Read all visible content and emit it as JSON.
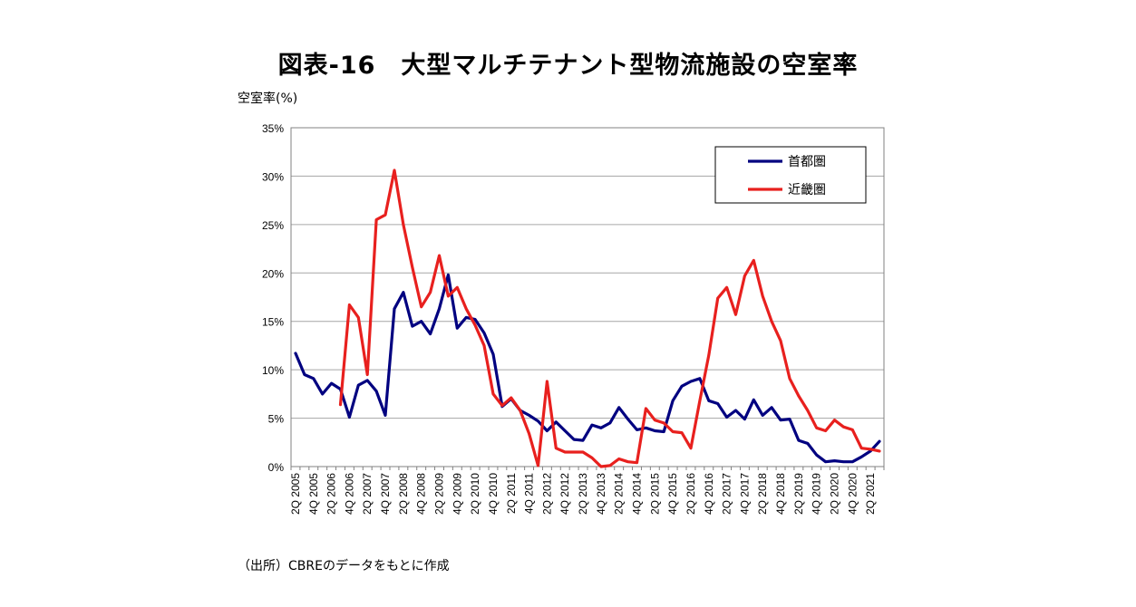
{
  "chart_data": {
    "type": "line",
    "title": "図表-16　大型マルチテナント型物流施設の空室率",
    "ylabel": "空室率(%)",
    "source": "（出所）CBREのデータをもとに作成",
    "ylim": [
      0,
      35
    ],
    "yticks": [
      "0%",
      "5%",
      "10%",
      "15%",
      "20%",
      "25%",
      "30%",
      "35%"
    ],
    "grid": true,
    "legend_position": "top-right",
    "x": [
      "2Q 2005",
      "3Q 2005",
      "4Q 2005",
      "1Q 2006",
      "2Q 2006",
      "3Q 2006",
      "4Q 2006",
      "1Q 2007",
      "2Q 2007",
      "3Q 2007",
      "4Q 2007",
      "1Q 2008",
      "2Q 2008",
      "3Q 2008",
      "4Q 2008",
      "1Q 2009",
      "2Q 2009",
      "3Q 2009",
      "4Q 2009",
      "1Q 2010",
      "2Q 2010",
      "3Q 2010",
      "4Q 2010",
      "1Q 2011",
      "2Q 2011",
      "3Q 2011",
      "4Q 2011",
      "1Q 2012",
      "2Q 2012",
      "3Q 2012",
      "4Q 2012",
      "1Q 2013",
      "2Q 2013",
      "3Q 2013",
      "4Q 2013",
      "1Q 2014",
      "2Q 2014",
      "3Q 2014",
      "4Q 2014",
      "1Q 2015",
      "2Q 2015",
      "3Q 2015",
      "4Q 2015",
      "1Q 2016",
      "2Q 2016",
      "3Q 2016",
      "4Q 2016",
      "1Q 2017",
      "2Q 2017",
      "3Q 2017",
      "4Q 2017",
      "1Q 2018",
      "2Q 2018",
      "3Q 2018",
      "4Q 2018",
      "1Q 2019",
      "2Q 2019",
      "3Q 2019",
      "4Q 2019",
      "1Q 2020",
      "2Q 2020",
      "3Q 2020",
      "4Q 2020",
      "1Q 2021",
      "2Q 2021",
      "3Q 2021"
    ],
    "xtick_labels": [
      "2Q 2005",
      "4Q 2005",
      "2Q 2006",
      "4Q 2006",
      "2Q 2007",
      "4Q 2007",
      "2Q 2008",
      "4Q 2008",
      "2Q 2009",
      "4Q 2009",
      "2Q 2010",
      "4Q 2010",
      "2Q 2011",
      "4Q 2011",
      "2Q 2012",
      "4Q 2012",
      "2Q 2013",
      "4Q 2013",
      "2Q 2014",
      "4Q 2014",
      "2Q 2015",
      "4Q 2015",
      "2Q 2016",
      "4Q 2016",
      "2Q 2017",
      "4Q 2017",
      "2Q 2018",
      "4Q 2018",
      "2Q 2019",
      "4Q 2019",
      "2Q 2020",
      "4Q 2020",
      "2Q 2021"
    ],
    "series": [
      {
        "name": "首都圏",
        "color": "#000080",
        "values": [
          11.7,
          9.5,
          9.1,
          7.5,
          8.6,
          8.0,
          5.1,
          8.4,
          8.9,
          7.8,
          5.3,
          16.3,
          18.0,
          14.5,
          15.0,
          13.7,
          16.3,
          19.8,
          14.3,
          15.4,
          15.2,
          13.8,
          11.6,
          6.2,
          7.0,
          5.8,
          5.3,
          4.7,
          3.7,
          4.6,
          3.7,
          2.8,
          2.7,
          4.3,
          4.0,
          4.5,
          6.1,
          4.9,
          3.8,
          4.0,
          3.7,
          3.6,
          6.8,
          8.3,
          8.8,
          9.1,
          6.8,
          6.5,
          5.1,
          5.8,
          4.9,
          6.9,
          5.3,
          6.1,
          4.8,
          4.9,
          2.7,
          2.4,
          1.2,
          0.5,
          0.6,
          0.5,
          0.5,
          1.0,
          1.6,
          2.6
        ]
      },
      {
        "name": "近畿圏",
        "color": "#e8201e",
        "values": [
          null,
          null,
          null,
          null,
          null,
          6.4,
          16.7,
          15.4,
          9.5,
          25.5,
          26.0,
          30.6,
          25.0,
          20.6,
          16.5,
          18.0,
          21.8,
          17.6,
          18.5,
          16.3,
          14.6,
          12.5,
          7.5,
          6.3,
          7.1,
          5.8,
          3.4,
          0.1,
          8.8,
          1.9,
          1.5,
          1.5,
          1.5,
          0.9,
          0.0,
          0.1,
          0.8,
          0.5,
          0.4,
          6.0,
          4.8,
          4.5,
          3.6,
          3.5,
          1.9,
          6.8,
          11.5,
          17.4,
          18.5,
          15.7,
          19.7,
          21.3,
          17.6,
          15.0,
          13.0,
          9.1,
          7.3,
          5.8,
          4.0,
          3.7,
          4.8,
          4.1,
          3.8,
          1.9,
          1.8,
          1.6
        ]
      }
    ]
  }
}
